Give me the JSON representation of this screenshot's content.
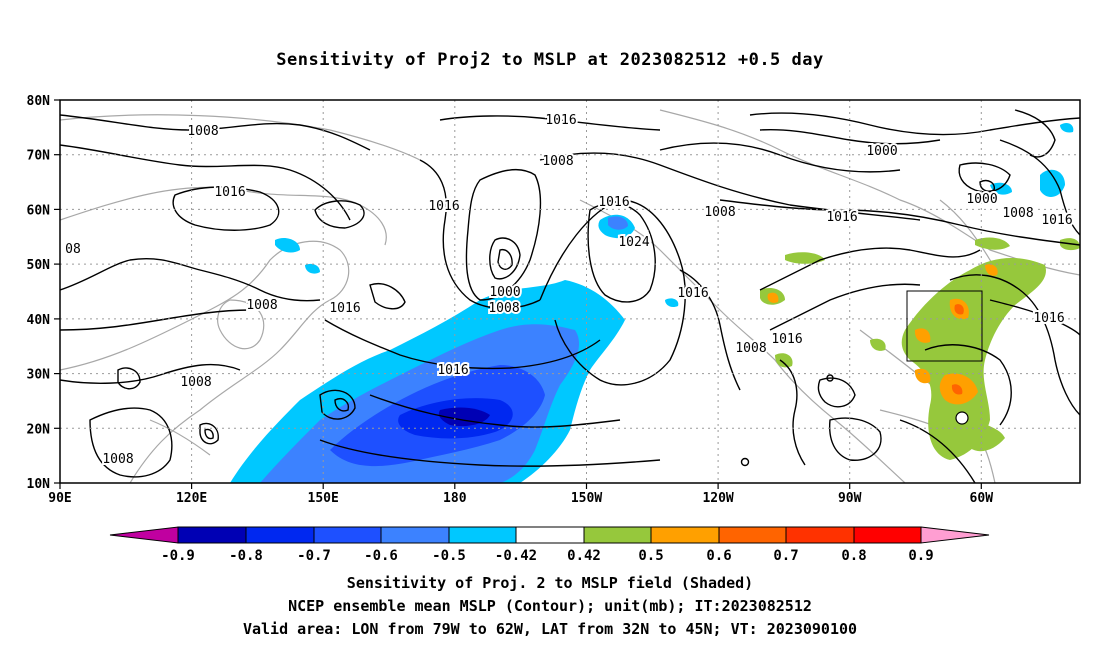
{
  "title": "Sensitivity of Proj2 to MSLP at 2023082512 +0.5 day",
  "lat_labels": [
    "80N",
    "70N",
    "60N",
    "50N",
    "40N",
    "30N",
    "20N",
    "10N"
  ],
  "lon_labels": [
    "90E",
    "120E",
    "150E",
    "180",
    "150W",
    "120W",
    "90W",
    "60W"
  ],
  "contour_labels": [
    {
      "text": "1008",
      "id": "c1008-a"
    },
    {
      "text": "1016",
      "id": "c1016-a"
    },
    {
      "text": "1008",
      "id": "c1008-b"
    },
    {
      "text": "1016",
      "id": "c1016-b"
    },
    {
      "text": "1016",
      "id": "c1016-c"
    },
    {
      "text": "1016",
      "id": "c1016-d"
    },
    {
      "text": "1024",
      "id": "c1024"
    },
    {
      "text": "1000",
      "id": "c1000-a"
    },
    {
      "text": "1008",
      "id": "c1008-c"
    },
    {
      "text": "1008",
      "id": "c1008-d"
    },
    {
      "text": "1016",
      "id": "c1016-e"
    },
    {
      "text": "1016",
      "id": "c1016-f"
    },
    {
      "text": "1008",
      "id": "c1008-e"
    },
    {
      "text": "1016",
      "id": "c1016-g"
    },
    {
      "text": "1008",
      "id": "c1008-f"
    },
    {
      "text": "1016",
      "id": "c1016-h"
    },
    {
      "text": "1008",
      "id": "c1008-g"
    },
    {
      "text": "1008",
      "id": "c1008-h"
    },
    {
      "text": "1000",
      "id": "c1000-b"
    },
    {
      "text": "1000",
      "id": "c1000-c"
    },
    {
      "text": "1008",
      "id": "c1008-i"
    },
    {
      "text": "1016",
      "id": "c1016-i"
    },
    {
      "text": "1016",
      "id": "c1016-j"
    },
    {
      "text": "08",
      "id": "c08"
    }
  ],
  "colorbar": {
    "labels": [
      "-0.9",
      "-0.8",
      "-0.7",
      "-0.6",
      "-0.5",
      "-0.42",
      "0.42",
      "0.5",
      "0.6",
      "0.7",
      "0.8",
      "0.9"
    ],
    "colors": [
      "#c000a0",
      "#0000b4",
      "#0028f0",
      "#1e50ff",
      "#3c82ff",
      "#00c8ff",
      "#ffffff",
      "#96c83c",
      "#ffa000",
      "#ff6400",
      "#ff3200",
      "#ff0000",
      "#ff9ed2"
    ]
  },
  "captions": {
    "line1": "Sensitivity of Proj. 2 to MSLP field (Shaded)",
    "line2": "NCEP ensemble mean MSLP (Contour); unit(mb); IT:2023082512",
    "line3": "Valid area: LON from 79W to 62W, LAT from 32N to 45N; VT: 2023090100"
  }
}
